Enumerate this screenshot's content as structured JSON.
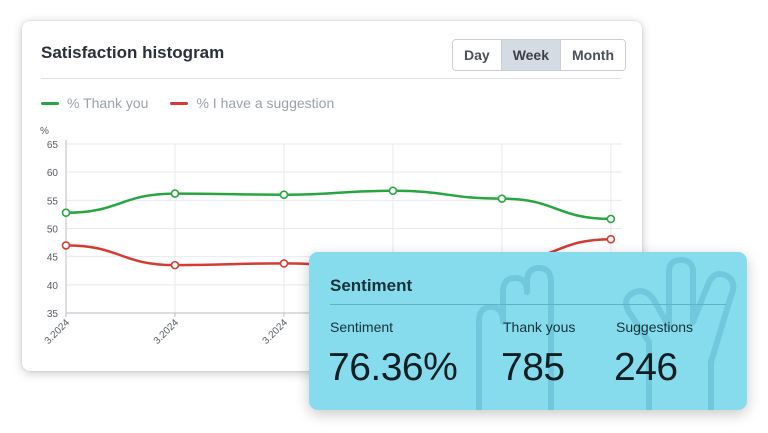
{
  "histogram": {
    "title": "Satisfaction histogram",
    "period_tabs": [
      {
        "label": "Day",
        "active": false
      },
      {
        "label": "Week",
        "active": true
      },
      {
        "label": "Month",
        "active": false
      }
    ],
    "legend": [
      {
        "label": "% Thank you",
        "color": "#27a640"
      },
      {
        "label": "% I have a suggestion",
        "color": "#d73a30"
      }
    ]
  },
  "chart_data": {
    "type": "line",
    "ylabel": "%",
    "ylim": [
      35,
      65
    ],
    "yticks": [
      35,
      40,
      45,
      50,
      55,
      60,
      65
    ],
    "x_tick_labels": [
      "3.2024",
      "3.2024",
      "3.2024"
    ],
    "grid": true,
    "series": [
      {
        "name": "% Thank you",
        "color": "#27a640",
        "values": [
          52.8,
          56.2,
          56.0,
          56.7,
          55.3,
          51.7
        ]
      },
      {
        "name": "% I have a suggestion",
        "color": "#d73a30",
        "values": [
          47.0,
          43.5,
          43.8,
          42.5,
          44.2,
          48.1
        ]
      }
    ]
  },
  "sentiment": {
    "title": "Sentiment",
    "stats": [
      {
        "label": "Sentiment",
        "value": "76.36%"
      },
      {
        "label": "Thank yous",
        "value": "785"
      },
      {
        "label": "Suggestions",
        "value": "246"
      }
    ]
  }
}
